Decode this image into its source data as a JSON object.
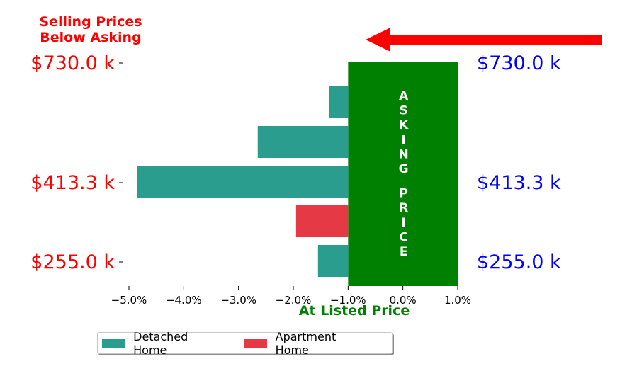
{
  "annotation": {
    "title_lines": [
      "Selling Prices",
      "Below Asking"
    ]
  },
  "chart_data": {
    "type": "bar",
    "orientation": "horizontal",
    "xlabel": "At Listed Price",
    "xlim": [
      -5.0,
      1.0
    ],
    "x_ticks": [
      -5.0,
      -4.0,
      -3.0,
      -2.0,
      -1.0,
      0.0,
      1.0
    ],
    "x_tick_labels": [
      "−5.0%",
      "−4.0%",
      "−3.0%",
      "−2.0%",
      "−1.0%",
      "0.0%",
      "1.0%"
    ],
    "y_ticks_left": [
      "$730.0 k",
      "$413.3 k",
      "$255.0 k"
    ],
    "y_ticks_right": [
      "$730.0 k",
      "$413.3 k",
      "$255.0 k"
    ],
    "asking_price_band": {
      "x_range": [
        -1.0,
        1.0
      ],
      "label": "ASKING PRICE",
      "color": "#008000"
    },
    "bars": [
      {
        "series": "Detached Home",
        "value": -1.35
      },
      {
        "series": "Detached Home",
        "value": -2.65
      },
      {
        "series": "Detached Home",
        "value": -4.85
      },
      {
        "series": "Apartment Home",
        "value": -1.95
      },
      {
        "series": "Detached Home",
        "value": -1.55
      }
    ],
    "series": [
      {
        "name": "Detached Home",
        "color": "#2a9d8f"
      },
      {
        "name": "Apartment Home",
        "color": "#e63946"
      }
    ],
    "colors": {
      "left_ticks": "#ff0000",
      "right_ticks": "#0000ff",
      "xlabel": "#008000",
      "arrow": "#ff0000"
    },
    "legend_position": "bottom-left",
    "grid": false
  }
}
